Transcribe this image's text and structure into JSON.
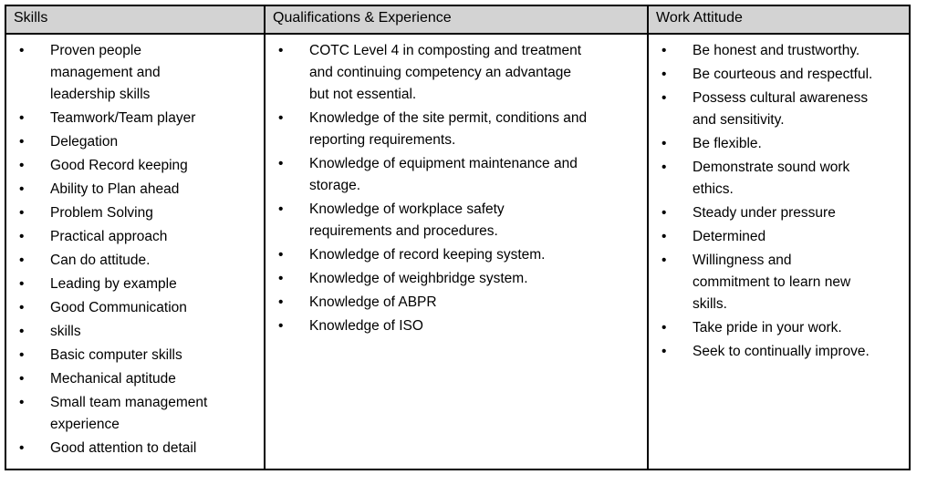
{
  "columns": [
    {
      "header": "Skills",
      "items": [
        "Proven people\nmanagement and\nleadership skills",
        "Teamwork/Team player",
        "Delegation",
        "Good Record keeping",
        "Ability to Plan ahead",
        "Problem Solving",
        "Practical approach",
        "Can do attitude.",
        "Leading by example",
        "Good Communication",
        "skills",
        "Basic computer skills",
        "Mechanical aptitude",
        "Small team management\nexperience",
        "Good attention to detail"
      ]
    },
    {
      "header": "Qualifications & Experience",
      "items": [
        "COTC Level 4 in composting and treatment\nand continuing competency an advantage\nbut not essential.",
        "Knowledge of the site permit, conditions and\nreporting requirements.",
        "Knowledge of equipment maintenance and\nstorage.",
        "Knowledge of workplace safety\nrequirements and procedures.",
        "Knowledge of record keeping system.",
        "Knowledge of weighbridge system.",
        "Knowledge of ABPR",
        "Knowledge of ISO"
      ]
    },
    {
      "header": "Work Attitude",
      "items": [
        "Be honest and trustworthy.",
        "Be courteous and respectful.",
        "Possess cultural awareness\nand sensitivity.",
        "Be flexible.",
        "Demonstrate sound work\nethics.",
        "Steady under pressure",
        "Determined",
        "Willingness and\ncommitment to learn new\nskills.",
        "Take pride in your work.",
        "Seek to continually improve."
      ]
    }
  ],
  "bullet": "•",
  "colors": {
    "header_bg": "#d3d3d3",
    "border": "#000000"
  }
}
